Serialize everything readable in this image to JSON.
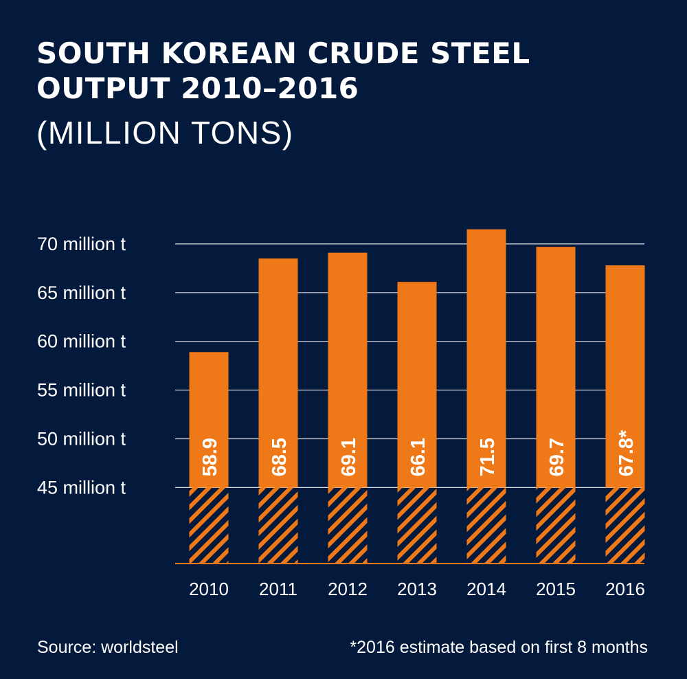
{
  "header": {
    "title_line1": "SOUTH KOREAN CRUDE STEEL",
    "title_line2": "OUTPUT 2010–2016",
    "subtitle": "(MILLION TONS)"
  },
  "footer": {
    "source": "Source: worldsteel",
    "note": "*2016 estimate based on first 8 months"
  },
  "colors": {
    "background": "#041a3c",
    "bar": "#ef7918",
    "gridline": "#ffffff",
    "text": "#ffffff"
  },
  "chart_data": {
    "type": "bar",
    "categories": [
      "2010",
      "2011",
      "2012",
      "2013",
      "2014",
      "2015",
      "2016"
    ],
    "values": [
      58.9,
      68.5,
      69.1,
      66.1,
      71.5,
      69.7,
      67.8
    ],
    "value_labels": [
      "58.9",
      "68.5",
      "69.1",
      "66.1",
      "71.5",
      "69.7",
      "67.8*"
    ],
    "y_tick_values": [
      70,
      65,
      60,
      55,
      50,
      45
    ],
    "y_tick_labels": [
      "70 million t",
      "65 million t",
      "60 million t",
      "55 million t",
      "50 million t",
      "45 million t"
    ],
    "ylim": [
      37.2,
      72
    ],
    "axis_break_below": 45,
    "grid": true,
    "legend": "none",
    "xlabel": "",
    "ylabel": ""
  }
}
